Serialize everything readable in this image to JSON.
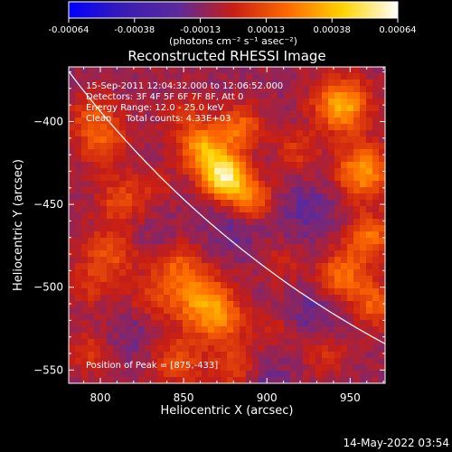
{
  "chart_data": {
    "type": "heatmap",
    "title": "Reconstructed RHESSI Image",
    "xlabel": "Heliocentric X (arcsec)",
    "ylabel": "Heliocentric Y (arcsec)",
    "xlim": [
      781,
      971
    ],
    "ylim": [
      -558,
      -367
    ],
    "x_ticks": [
      800,
      850,
      900,
      950
    ],
    "y_ticks": [
      -400,
      -450,
      -500,
      -550
    ],
    "colorbar": {
      "vmin": -0.00064,
      "vmax": 0.00064,
      "ticks": [
        "-0.00064",
        "-0.00038",
        "-0.00013",
        "0.00013",
        "0.00038",
        "0.00064"
      ],
      "label": "(photons cm⁻² s⁻¹ asec⁻²)",
      "colors": [
        "#0000ff",
        "#3a1cb4",
        "#5c2a9c",
        "#c81e14",
        "#ff6a00",
        "#ffd400",
        "#ffffff"
      ]
    },
    "annotations": [
      "15-Sep-2011 12:04:32.000 to 12:06:52.000",
      "Detectors: 3F 4F 5F 6F 7F 8F, Att 0",
      "Energy Range: 12.0 - 25.0 keV",
      "Clean     Total counts: 4.33E+03"
    ],
    "peak_label": "Position of Peak = [875,-433]",
    "peak": [
      875,
      -433
    ],
    "limb": {
      "center_x": 1250,
      "center_y": -20,
      "radius": 585
    },
    "sources": [
      {
        "x": 875,
        "y": -433,
        "value": 0.00064,
        "w": 9
      },
      {
        "x": 862,
        "y": -416,
        "value": 0.00042,
        "w": 10
      },
      {
        "x": 890,
        "y": -447,
        "value": 0.0003,
        "w": 9
      },
      {
        "x": 884,
        "y": -404,
        "value": 0.00028,
        "w": 9
      },
      {
        "x": 802,
        "y": -412,
        "value": 0.00022,
        "w": 11
      },
      {
        "x": 812,
        "y": -448,
        "value": 0.0002,
        "w": 10
      },
      {
        "x": 805,
        "y": -480,
        "value": 0.00022,
        "w": 11
      },
      {
        "x": 795,
        "y": -395,
        "value": 0.00018,
        "w": 9
      },
      {
        "x": 793,
        "y": -500,
        "value": 0.00012,
        "w": 9
      },
      {
        "x": 793,
        "y": -540,
        "value": 0.00015,
        "w": 9
      },
      {
        "x": 860,
        "y": -508,
        "value": 0.00035,
        "w": 12
      },
      {
        "x": 873,
        "y": -520,
        "value": 0.00025,
        "w": 10
      },
      {
        "x": 846,
        "y": -487,
        "value": 0.00022,
        "w": 10
      },
      {
        "x": 832,
        "y": -505,
        "value": 0.00015,
        "w": 10
      },
      {
        "x": 847,
        "y": -545,
        "value": 0.0002,
        "w": 11
      },
      {
        "x": 881,
        "y": -548,
        "value": 0.00018,
        "w": 10
      },
      {
        "x": 945,
        "y": -390,
        "value": 0.00045,
        "w": 11
      },
      {
        "x": 958,
        "y": -430,
        "value": 0.0004,
        "w": 11
      },
      {
        "x": 962,
        "y": -470,
        "value": 0.0003,
        "w": 10
      },
      {
        "x": 945,
        "y": -493,
        "value": 0.0003,
        "w": 10
      },
      {
        "x": 965,
        "y": -510,
        "value": 0.00025,
        "w": 10
      },
      {
        "x": 935,
        "y": -540,
        "value": 0.00012,
        "w": 10
      },
      {
        "x": 918,
        "y": -418,
        "value": 0.00015,
        "w": 9
      },
      {
        "x": 910,
        "y": -485,
        "value": 0.0001,
        "w": 9
      },
      {
        "x": 905,
        "y": -525,
        "value": 8e-05,
        "w": 9
      },
      {
        "x": 850,
        "y": -395,
        "value": 0.0001,
        "w": 10
      },
      {
        "x": 832,
        "y": -440,
        "value": 8e-05,
        "w": 9
      },
      {
        "x": 835,
        "y": -470,
        "value": -6e-05,
        "w": 10
      },
      {
        "x": 880,
        "y": -465,
        "value": -0.0001,
        "w": 12
      },
      {
        "x": 925,
        "y": -455,
        "value": -0.00012,
        "w": 12
      },
      {
        "x": 820,
        "y": -530,
        "value": -8e-05,
        "w": 10
      },
      {
        "x": 900,
        "y": -555,
        "value": -0.0001,
        "w": 10
      },
      {
        "x": 930,
        "y": -515,
        "value": -0.00012,
        "w": 11
      }
    ]
  },
  "footer": {
    "timestamp": "14-May-2022 03:54"
  }
}
